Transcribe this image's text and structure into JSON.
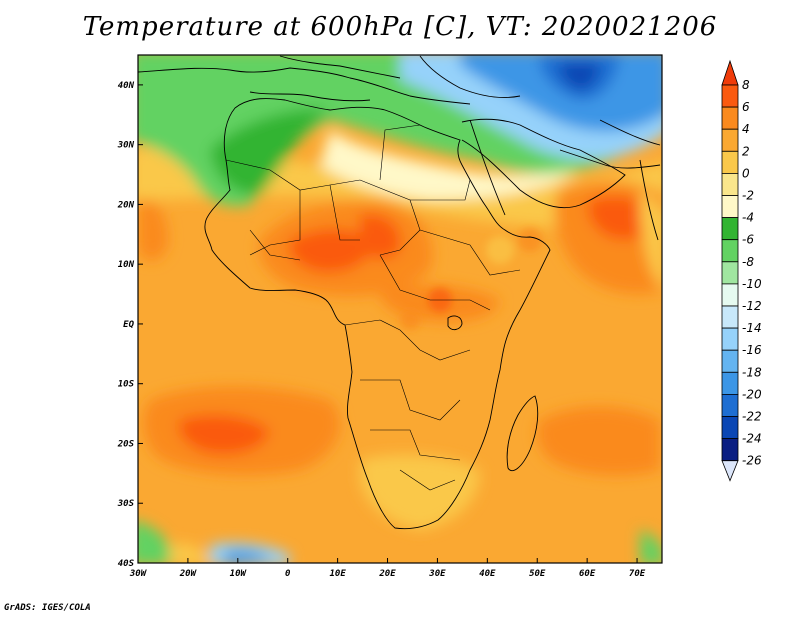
{
  "title": "Temperature at 600hPa [C], VT: 2020021206",
  "credit": "GrADS: IGES/COLA",
  "map": {
    "lon_range": [
      -30,
      75
    ],
    "lat_range": [
      -40,
      45
    ],
    "lon_ticks": [
      {
        "value": -30,
        "label": "30W"
      },
      {
        "value": -20,
        "label": "20W"
      },
      {
        "value": -10,
        "label": "10W"
      },
      {
        "value": 0,
        "label": "0"
      },
      {
        "value": 10,
        "label": "10E"
      },
      {
        "value": 20,
        "label": "20E"
      },
      {
        "value": 30,
        "label": "30E"
      },
      {
        "value": 40,
        "label": "40E"
      },
      {
        "value": 50,
        "label": "50E"
      },
      {
        "value": 60,
        "label": "60E"
      },
      {
        "value": 70,
        "label": "70E"
      }
    ],
    "lat_ticks": [
      {
        "value": 40,
        "label": "40N"
      },
      {
        "value": 30,
        "label": "30N"
      },
      {
        "value": 20,
        "label": "20N"
      },
      {
        "value": 10,
        "label": "10N"
      },
      {
        "value": 0,
        "label": "EQ"
      },
      {
        "value": -10,
        "label": "10S"
      },
      {
        "value": -20,
        "label": "20S"
      },
      {
        "value": -30,
        "label": "30S"
      },
      {
        "value": -40,
        "label": "40S"
      }
    ]
  },
  "colorbar": {
    "levels": [
      "8",
      "6",
      "4",
      "2",
      "0",
      "-2",
      "-4",
      "-6",
      "-8",
      "-10",
      "-12",
      "-14",
      "-16",
      "-18",
      "-20",
      "-22",
      "-24",
      "-26"
    ],
    "colors": [
      "#f03c0a",
      "#fa5a10",
      "#fa8a1e",
      "#faa832",
      "#fac84a",
      "#fae68c",
      "#fff8c8",
      "#32b432",
      "#62d262",
      "#a0e6a0",
      "#e6faf0",
      "#c8e8fa",
      "#96d2fa",
      "#64b4f0",
      "#3c96e6",
      "#1e6ed2",
      "#0a46b4",
      "#0a1e82",
      "#dce6fa"
    ]
  }
}
